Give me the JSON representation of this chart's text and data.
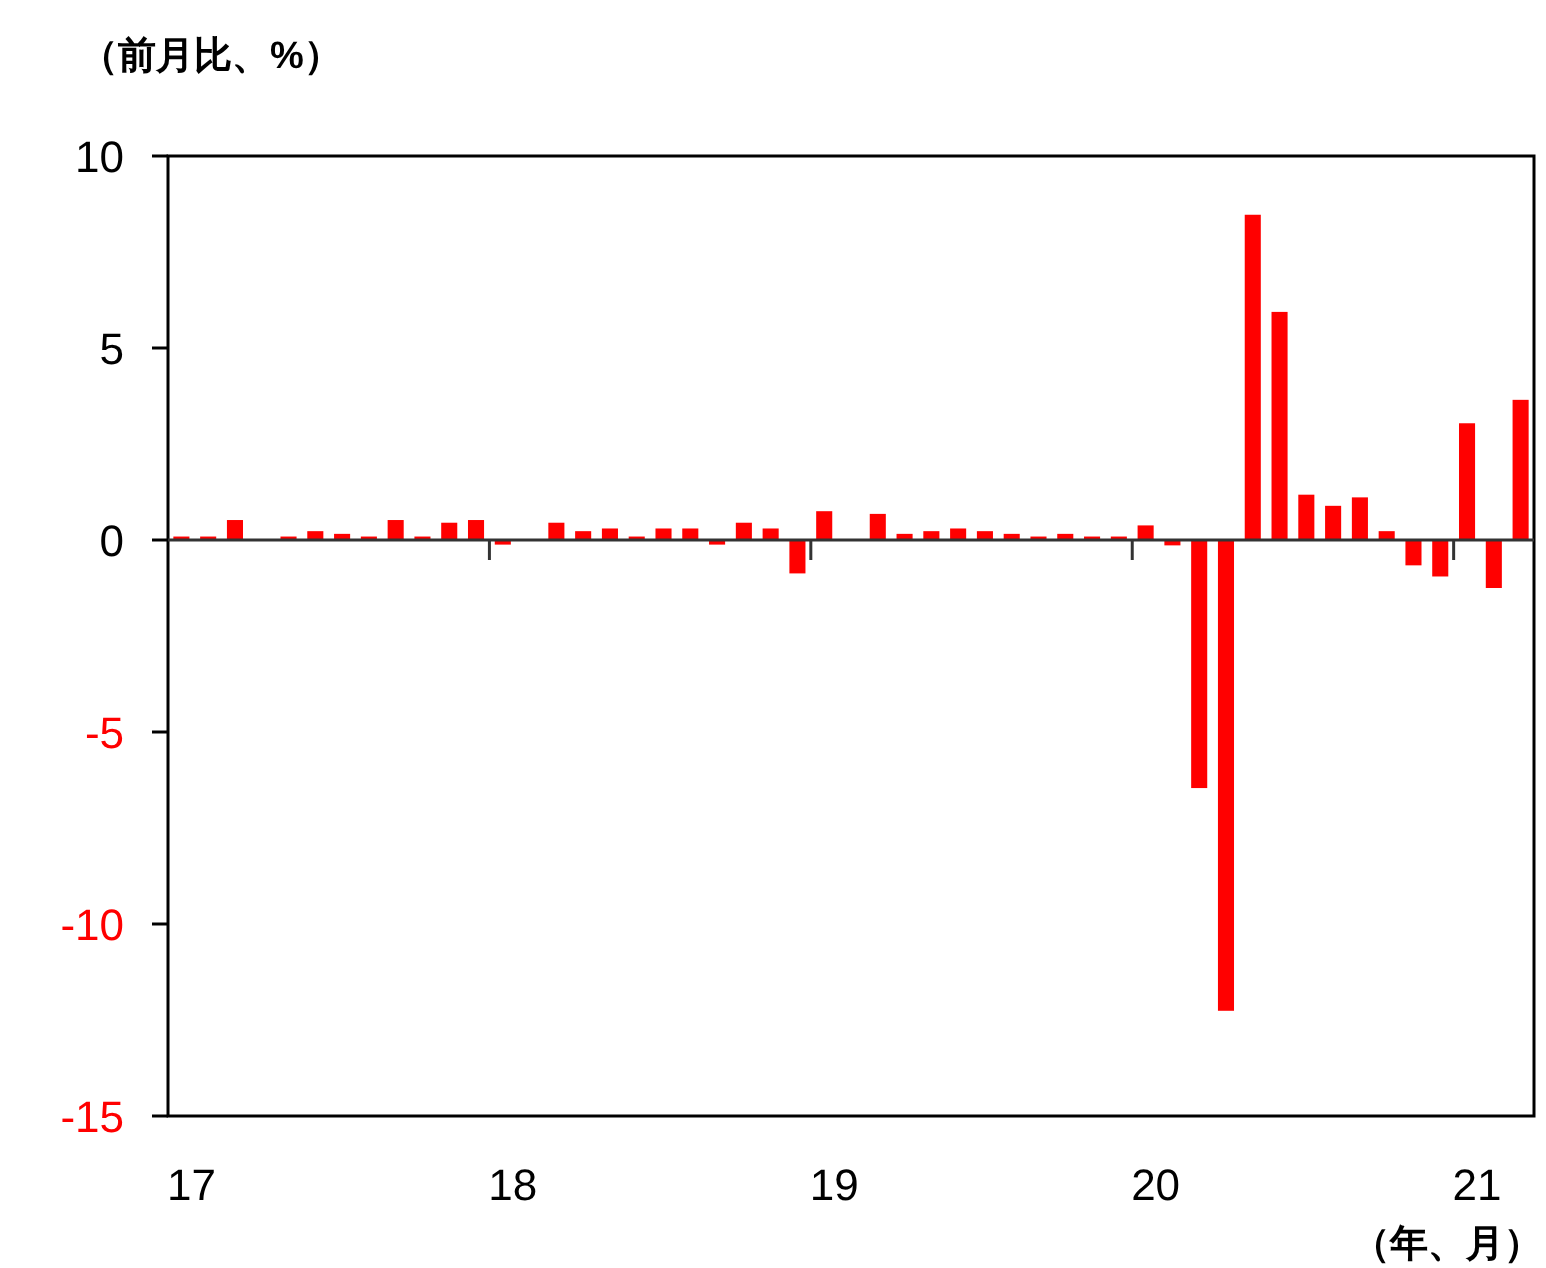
{
  "chart_data": {
    "type": "bar",
    "ylabel": "（前月比、%）",
    "xlabel": "（年、月）",
    "categories": [
      "17",
      null,
      null,
      null,
      null,
      null,
      null,
      null,
      null,
      null,
      null,
      null,
      "18",
      null,
      null,
      null,
      null,
      null,
      null,
      null,
      null,
      null,
      null,
      null,
      "19",
      null,
      null,
      null,
      null,
      null,
      null,
      null,
      null,
      null,
      null,
      null,
      "20",
      null,
      null,
      null,
      null,
      null,
      null,
      null,
      null,
      null,
      null,
      null,
      "21",
      null,
      null
    ],
    "values": [
      0.09,
      0.09,
      0.52,
      null,
      0.09,
      0.23,
      0.16,
      0.09,
      0.52,
      0.09,
      0.45,
      0.52,
      -0.12,
      null,
      0.45,
      0.23,
      0.3,
      0.09,
      0.3,
      0.3,
      -0.12,
      0.45,
      0.3,
      -0.87,
      0.75,
      null,
      0.68,
      0.16,
      0.23,
      0.3,
      0.23,
      0.16,
      0.09,
      0.16,
      0.09,
      0.09,
      0.38,
      -0.14,
      -6.46,
      -12.26,
      8.47,
      5.94,
      1.18,
      0.89,
      1.11,
      0.23,
      -0.66,
      -0.95,
      3.04,
      -1.25,
      3.65
    ],
    "color": "#ff0000",
    "ylim": [
      -15,
      10
    ],
    "yticks": [
      -15,
      -10,
      -5,
      0,
      5,
      10
    ]
  }
}
